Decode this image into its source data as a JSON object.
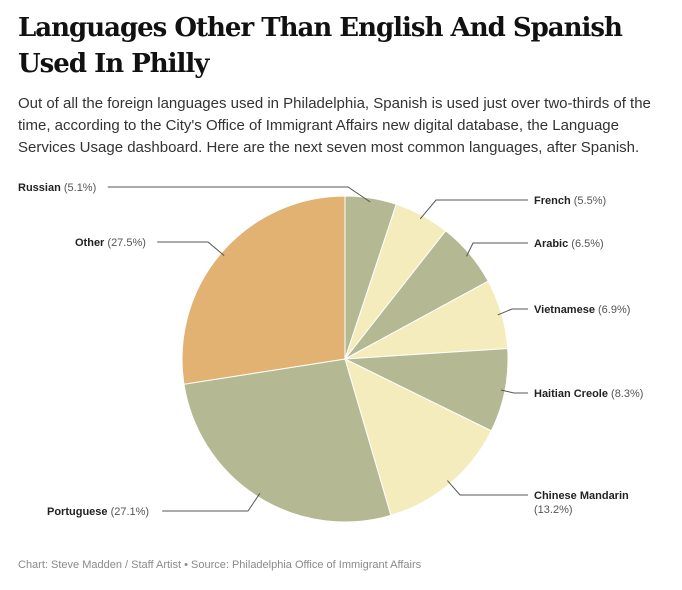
{
  "title": "Languages Other Than English And Spanish Used In Philly",
  "subtitle": "Out of all the foreign languages used in Philadelphia, Spanish is used just over two-thirds of the time, according to the City's Office of Immigrant Affairs new digital database, the Language Services Usage dashboard. Here are the next seven most common languages, after Spanish.",
  "source": "Chart: Steve Madden / Staff Artist • Source: Philadelphia Office of Immigrant Affairs",
  "colors": {
    "sage": "#b5b993",
    "cream": "#f5ecbe",
    "orange": "#e2b273",
    "leader": "#555555"
  },
  "chart_data": {
    "type": "pie",
    "start_angle_deg": 0,
    "direction": "clockwise",
    "slices": [
      {
        "label": "Russian",
        "value": 5.1,
        "value_label": "(5.1%)",
        "color": "#b5b993",
        "label_side": "left"
      },
      {
        "label": "French",
        "value": 5.5,
        "value_label": "(5.5%)",
        "color": "#f5ecbe",
        "label_side": "right"
      },
      {
        "label": "Arabic",
        "value": 6.5,
        "value_label": "(6.5%)",
        "color": "#b5b993",
        "label_side": "right"
      },
      {
        "label": "Vietnamese",
        "value": 6.9,
        "value_label": "(6.9%)",
        "color": "#f5ecbe",
        "label_side": "right"
      },
      {
        "label": "Haitian Creole",
        "value": 8.3,
        "value_label": "(8.3%)",
        "color": "#b5b993",
        "label_side": "right"
      },
      {
        "label": "Chinese Mandarin",
        "value": 13.2,
        "value_label": "(13.2%)",
        "color": "#f5ecbe",
        "label_side": "right",
        "wrap": true
      },
      {
        "label": "Portuguese",
        "value": 27.1,
        "value_label": "(27.1%)",
        "color": "#b5b993",
        "label_side": "left"
      },
      {
        "label": "Other",
        "value": 27.5,
        "value_label": "(27.5%)",
        "color": "#e2b273",
        "label_side": "left"
      }
    ]
  }
}
